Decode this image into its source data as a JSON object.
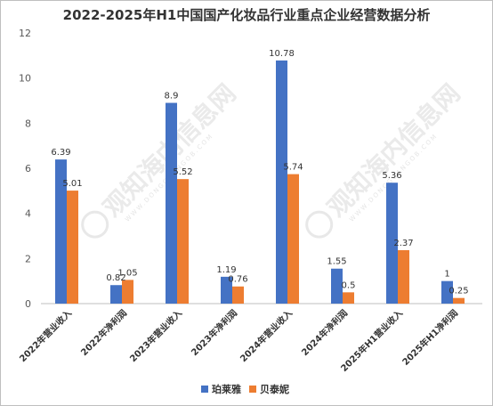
{
  "chart_data": {
    "type": "bar",
    "title": "2022-2025年H1中国国产化妆品行业重点企业经营数据分析",
    "categories": [
      "2022年营业收入",
      "2022年净利润",
      "2023年营业收入",
      "2023年净利润",
      "2024年营业收入",
      "2024年净利润",
      "2025年H1营业收入",
      "2025年H1净利润"
    ],
    "series": [
      {
        "name": "珀莱雅",
        "color": "#4472C4",
        "values": [
          6.39,
          0.82,
          8.9,
          1.19,
          10.78,
          1.55,
          5.36,
          1
        ],
        "labels": [
          "6.39",
          "0.82",
          "8.9",
          "1.19",
          "10.78",
          "1.55",
          "5.36",
          "1"
        ]
      },
      {
        "name": "贝泰妮",
        "color": "#ED7D31",
        "values": [
          5.01,
          1.05,
          5.52,
          0.76,
          5.74,
          0.5,
          2.37,
          0.25
        ],
        "labels": [
          "5.01",
          "1.05",
          "5.52",
          "0.76",
          "5.74",
          "0.5",
          "2.37",
          "0.25"
        ]
      }
    ],
    "ylim": [
      0,
      12
    ],
    "yticks": [
      "0",
      "2",
      "4",
      "6",
      "8",
      "10",
      "12"
    ],
    "grid": false,
    "legend": "bottom"
  },
  "watermark": {
    "text": "观知海内信息网",
    "url_text": "WWW.DONGGUANGOB.COM"
  }
}
